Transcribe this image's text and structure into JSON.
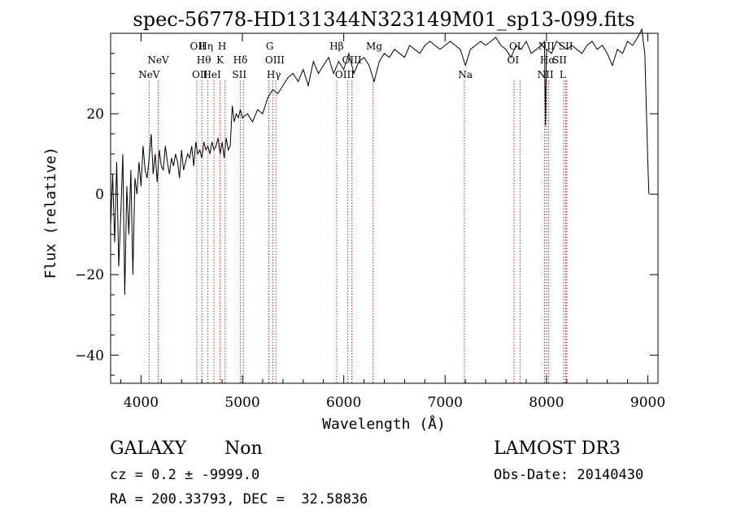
{
  "chart_data": {
    "type": "line",
    "title": "spec-56778-HD131344N323149M01_sp13-099.fits",
    "xlabel": "Wavelength (Å)",
    "ylabel": "Flux (relative)",
    "xlim": [
      3700,
      9100
    ],
    "ylim": [
      -47,
      40
    ],
    "xticks": [
      4000,
      5000,
      6000,
      7000,
      8000,
      9000
    ],
    "yticks": [
      -40,
      -20,
      0,
      20
    ],
    "series": [
      {
        "name": "spectrum",
        "x": [
          3700,
          3720,
          3740,
          3760,
          3780,
          3800,
          3820,
          3840,
          3860,
          3880,
          3900,
          3920,
          3940,
          3960,
          3980,
          4000,
          4020,
          4040,
          4060,
          4080,
          4100,
          4120,
          4140,
          4160,
          4180,
          4200,
          4220,
          4240,
          4260,
          4280,
          4300,
          4320,
          4340,
          4360,
          4380,
          4400,
          4420,
          4440,
          4460,
          4480,
          4500,
          4520,
          4540,
          4560,
          4580,
          4600,
          4620,
          4640,
          4660,
          4680,
          4700,
          4720,
          4740,
          4760,
          4780,
          4800,
          4820,
          4840,
          4860,
          4880,
          4900,
          4920,
          4940,
          4960,
          4980,
          5000,
          5050,
          5100,
          5150,
          5200,
          5250,
          5300,
          5350,
          5400,
          5450,
          5500,
          5550,
          5600,
          5650,
          5700,
          5750,
          5800,
          5850,
          5900,
          5950,
          6000,
          6050,
          6100,
          6150,
          6200,
          6250,
          6300,
          6350,
          6400,
          6450,
          6500,
          6550,
          6600,
          6650,
          6700,
          6750,
          6800,
          6850,
          6900,
          6950,
          7000,
          7050,
          7100,
          7150,
          7200,
          7250,
          7300,
          7350,
          7400,
          7450,
          7500,
          7550,
          7600,
          7650,
          7700,
          7750,
          7800,
          7850,
          7900,
          7950,
          7980,
          7990,
          8000,
          8050,
          8100,
          8150,
          8200,
          8250,
          8300,
          8350,
          8400,
          8450,
          8500,
          8550,
          8600,
          8650,
          8700,
          8750,
          8800,
          8850,
          8900,
          8940,
          8970,
          9000,
          9010
        ],
        "y": [
          -8,
          5,
          -12,
          8,
          -18,
          -5,
          10,
          -25,
          2,
          -10,
          6,
          -20,
          4,
          0,
          8,
          2,
          12,
          6,
          4,
          9,
          15,
          5,
          10,
          3,
          11,
          7,
          6,
          12,
          8,
          5,
          9,
          7,
          10,
          8,
          4,
          11,
          6,
          8,
          10,
          9,
          12,
          7,
          13,
          10,
          11,
          9,
          13,
          11,
          12,
          10,
          13,
          11,
          12,
          14,
          10,
          13,
          9,
          14,
          11,
          12,
          22,
          18,
          20,
          19,
          21,
          19,
          20,
          18,
          21,
          20,
          24,
          26,
          25,
          27,
          29,
          30,
          28,
          31,
          27,
          33,
          30,
          32,
          34,
          30,
          33,
          31,
          35,
          30,
          33,
          34,
          32,
          28,
          33,
          35,
          34,
          36,
          35,
          34,
          37,
          36,
          35,
          37,
          38,
          37,
          36,
          37,
          38,
          37,
          36,
          32,
          36,
          37,
          38,
          37,
          38,
          39,
          37,
          36,
          34,
          37,
          36,
          38,
          35,
          36,
          37,
          38,
          17,
          36,
          35,
          38,
          37,
          36,
          37,
          36,
          35,
          37,
          38,
          36,
          37,
          35,
          32,
          36,
          35,
          38,
          37,
          39,
          41,
          35,
          8,
          0
        ]
      }
    ],
    "line_markers": [
      {
        "label": "NeV",
        "x": 4080,
        "row": 3
      },
      {
        "label": "NeV",
        "x": 4170,
        "row": 2
      },
      {
        "label": "OII",
        "x": 4560,
        "row": 1
      },
      {
        "label": "OII",
        "x": 4580,
        "row": 3
      },
      {
        "label": "Hη",
        "x": 4640,
        "row": 1
      },
      {
        "label": "Hθ",
        "x": 4620,
        "row": 2
      },
      {
        "label": "HeI",
        "x": 4700,
        "row": 3
      },
      {
        "label": "H",
        "x": 4800,
        "row": 1
      },
      {
        "label": "K",
        "x": 4780,
        "row": 2
      },
      {
        "label": "Hδ",
        "x": 4980,
        "row": 2
      },
      {
        "label": "SII",
        "x": 4970,
        "row": 3
      },
      {
        "label": "G",
        "x": 5270,
        "row": 1
      },
      {
        "label": "OIII",
        "x": 5320,
        "row": 2
      },
      {
        "label": "Hγ",
        "x": 5310,
        "row": 3
      },
      {
        "label": "Hβ",
        "x": 5930,
        "row": 1
      },
      {
        "label": "OIII",
        "x": 6080,
        "row": 2
      },
      {
        "label": "OIII",
        "x": 6010,
        "row": 3
      },
      {
        "label": "Mg",
        "x": 6300,
        "row": 1
      },
      {
        "label": "Na",
        "x": 7200,
        "row": 3
      },
      {
        "label": "OI",
        "x": 7690,
        "row": 1
      },
      {
        "label": "OI",
        "x": 7670,
        "row": 2
      },
      {
        "label": "NII",
        "x": 8000,
        "row": 1
      },
      {
        "label": "Hα",
        "x": 8010,
        "row": 2
      },
      {
        "label": "NII",
        "x": 7990,
        "row": 3
      },
      {
        "label": "SII",
        "x": 8190,
        "row": 1
      },
      {
        "label": "SII",
        "x": 8130,
        "row": 2
      },
      {
        "label": "L",
        "x": 8160,
        "row": 3
      }
    ],
    "marker_lines": [
      4080,
      4170,
      4550,
      4600,
      4660,
      4720,
      4780,
      4830,
      4980,
      5010,
      5260,
      5300,
      5330,
      5930,
      6040,
      6080,
      6290,
      7190,
      7680,
      7740,
      7980,
      8000,
      8020,
      8170,
      8190,
      8200
    ]
  },
  "info": {
    "object_class": "GALAXY",
    "subclass": "Non",
    "survey": "LAMOST DR3",
    "cz_line": "cz = 0.2 ± -9999.0",
    "obs_date": "Obs-Date: 20140430",
    "coords": "RA = 200.33793, DEC =  32.58836"
  },
  "colors": {
    "spectrum": "#000000",
    "marker": "#cc2222",
    "axis": "#000000"
  }
}
